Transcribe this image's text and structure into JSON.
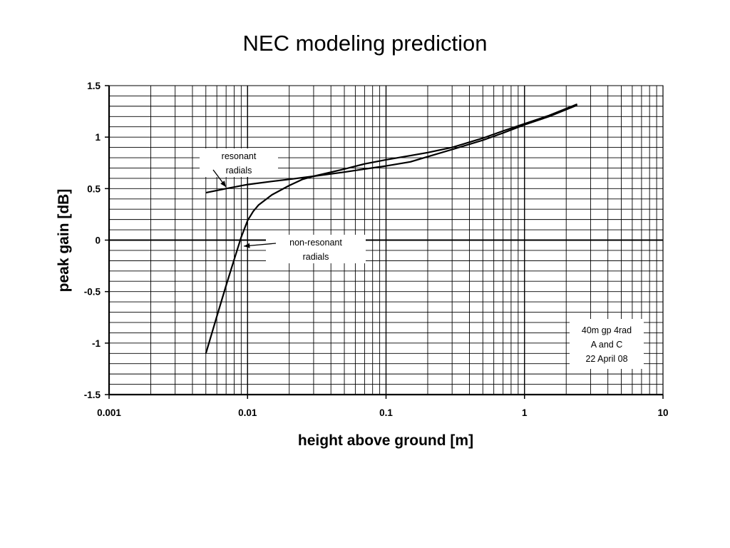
{
  "chart_data": {
    "type": "line",
    "title": "NEC modeling prediction",
    "xlabel": "height above ground [m]",
    "ylabel": "peak gain [dB]",
    "x_scale": "log",
    "xlim": [
      0.001,
      10
    ],
    "ylim": [
      -1.5,
      1.5
    ],
    "x_ticks": [
      0.001,
      0.01,
      0.1,
      1,
      10
    ],
    "x_tick_labels": [
      "0.001",
      "0.01",
      "0.1",
      "1",
      "10"
    ],
    "y_ticks": [
      -1.5,
      -1,
      -0.5,
      0,
      0.5,
      1,
      1.5
    ],
    "y_tick_labels": [
      "-1.5",
      "-1",
      "-0.5",
      "0",
      "0.5",
      "1",
      "1.5"
    ],
    "grid": true,
    "series": [
      {
        "name": "resonant radials",
        "x": [
          0.005,
          0.007,
          0.01,
          0.015,
          0.02,
          0.03,
          0.05,
          0.07,
          0.1,
          0.15,
          0.2,
          0.3,
          0.5,
          0.7,
          1,
          1.5,
          2.4
        ],
        "y": [
          0.46,
          0.5,
          0.54,
          0.57,
          0.59,
          0.62,
          0.66,
          0.69,
          0.72,
          0.76,
          0.81,
          0.88,
          0.97,
          1.04,
          1.12,
          1.2,
          1.31
        ]
      },
      {
        "name": "non-resonant radials",
        "x": [
          0.005,
          0.006,
          0.007,
          0.008,
          0.009,
          0.01,
          0.011,
          0.012,
          0.015,
          0.02,
          0.025,
          0.03,
          0.05,
          0.07,
          0.1,
          0.15,
          0.2,
          0.3,
          0.5,
          0.7,
          1,
          1.5,
          2.4
        ],
        "y": [
          -1.1,
          -0.74,
          -0.44,
          -0.19,
          0.03,
          0.19,
          0.28,
          0.34,
          0.44,
          0.53,
          0.59,
          0.62,
          0.69,
          0.74,
          0.78,
          0.82,
          0.85,
          0.9,
          0.99,
          1.06,
          1.13,
          1.21,
          1.32
        ]
      }
    ],
    "annotations": [
      {
        "text": "resonant\nradials",
        "target": "resonant radials"
      },
      {
        "text": "non-resonant\nradials",
        "target": "non-resonant radials"
      }
    ],
    "note": [
      "40m gp 4rad",
      "A and C",
      "22 April 08"
    ]
  }
}
